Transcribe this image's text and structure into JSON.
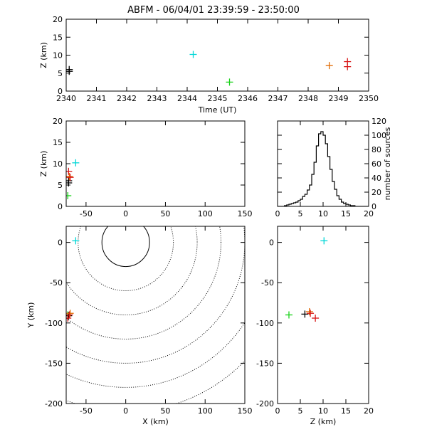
{
  "title": "ABFM - 06/04/01 23:39:59 - 23:50:00",
  "colors": {
    "black": "#000000",
    "cyan": "#00d7d7",
    "green": "#1ad21a",
    "orange": "#e06a00",
    "red": "#d81818"
  },
  "chart_data": [
    {
      "id": "time_height",
      "type": "scatter",
      "xlabel": "Time (UT)",
      "ylabel": "Z (km)",
      "xlim": [
        2340,
        2350
      ],
      "ylim": [
        0,
        20
      ],
      "xticks": [
        2340,
        2341,
        2342,
        2343,
        2344,
        2345,
        2346,
        2347,
        2348,
        2349,
        2350
      ],
      "yticks": [
        0,
        5,
        10,
        15,
        20
      ],
      "points": [
        {
          "x": 2340.1,
          "y": 5.5,
          "color": "black"
        },
        {
          "x": 2340.1,
          "y": 6.0,
          "color": "black"
        },
        {
          "x": 2344.2,
          "y": 10.2,
          "color": "cyan"
        },
        {
          "x": 2345.4,
          "y": 2.5,
          "color": "green"
        },
        {
          "x": 2348.7,
          "y": 7.1,
          "color": "orange"
        },
        {
          "x": 2349.3,
          "y": 6.8,
          "color": "red"
        },
        {
          "x": 2349.3,
          "y": 8.2,
          "color": "red"
        }
      ]
    },
    {
      "id": "x_height",
      "type": "scatter",
      "xlabel": "",
      "ylabel": "Z (km)",
      "xlim": [
        -75,
        150
      ],
      "ylim": [
        0,
        20
      ],
      "xticks": [
        -50,
        0,
        50,
        100,
        150
      ],
      "yticks": [
        0,
        5,
        10,
        15,
        20
      ],
      "points": [
        {
          "x": -63,
          "y": 10.2,
          "color": "cyan"
        },
        {
          "x": -73,
          "y": 2.5,
          "color": "green"
        },
        {
          "x": -72,
          "y": 6.0,
          "color": "black"
        },
        {
          "x": -72,
          "y": 5.5,
          "color": "black"
        },
        {
          "x": -71,
          "y": 7.0,
          "color": "orange"
        },
        {
          "x": -70,
          "y": 6.8,
          "color": "red"
        },
        {
          "x": -72,
          "y": 8.2,
          "color": "red"
        }
      ]
    },
    {
      "id": "height_histogram",
      "type": "histogram",
      "xlabel": "",
      "ylabel": "number of sources",
      "xlim": [
        0,
        20
      ],
      "ylim": [
        0,
        120
      ],
      "xticks": [
        0,
        5,
        10,
        15,
        20
      ],
      "yticks": [
        0,
        20,
        40,
        60,
        80,
        100,
        120
      ],
      "bin_width": 0.5,
      "bins_start": 0,
      "counts": [
        0,
        0,
        0,
        1,
        2,
        3,
        4,
        5,
        6,
        8,
        10,
        14,
        17,
        23,
        30,
        45,
        62,
        85,
        102,
        105,
        100,
        88,
        70,
        52,
        35,
        24,
        15,
        10,
        6,
        4,
        3,
        2,
        1,
        1,
        0,
        0,
        0,
        0,
        0,
        0
      ]
    },
    {
      "id": "plan_view",
      "type": "scatter",
      "xlabel": "X (km)",
      "ylabel": "Y (km)",
      "xlim": [
        -75,
        150
      ],
      "ylim": [
        -200,
        20
      ],
      "xticks": [
        -50,
        0,
        50,
        100,
        150
      ],
      "yticks": [
        0,
        -50,
        -100,
        -150,
        -200
      ],
      "range_rings": {
        "center": [
          0,
          0
        ],
        "radii": [
          30,
          60,
          90,
          120,
          150,
          180,
          210
        ],
        "solid_index": 0
      },
      "points": [
        {
          "x": -63,
          "y": 2,
          "color": "cyan"
        },
        {
          "x": -73,
          "y": -90,
          "color": "green"
        },
        {
          "x": -72,
          "y": -91,
          "color": "black"
        },
        {
          "x": -70,
          "y": -88,
          "color": "orange"
        },
        {
          "x": -73,
          "y": -94,
          "color": "red"
        },
        {
          "x": -71,
          "y": -90,
          "color": "red"
        }
      ]
    },
    {
      "id": "height_y",
      "type": "scatter",
      "xlabel": "Z (km)",
      "ylabel": "",
      "xlim": [
        0,
        20
      ],
      "ylim": [
        -200,
        20
      ],
      "xticks": [
        0,
        5,
        10,
        15,
        20
      ],
      "yticks": [
        0,
        -50,
        -100,
        -150,
        -200
      ],
      "points": [
        {
          "x": 10.2,
          "y": 2,
          "color": "cyan"
        },
        {
          "x": 2.5,
          "y": -90,
          "color": "green"
        },
        {
          "x": 6.0,
          "y": -89,
          "color": "black"
        },
        {
          "x": 7.0,
          "y": -86,
          "color": "orange"
        },
        {
          "x": 7.2,
          "y": -88,
          "color": "red"
        },
        {
          "x": 8.3,
          "y": -94,
          "color": "red"
        }
      ]
    }
  ]
}
